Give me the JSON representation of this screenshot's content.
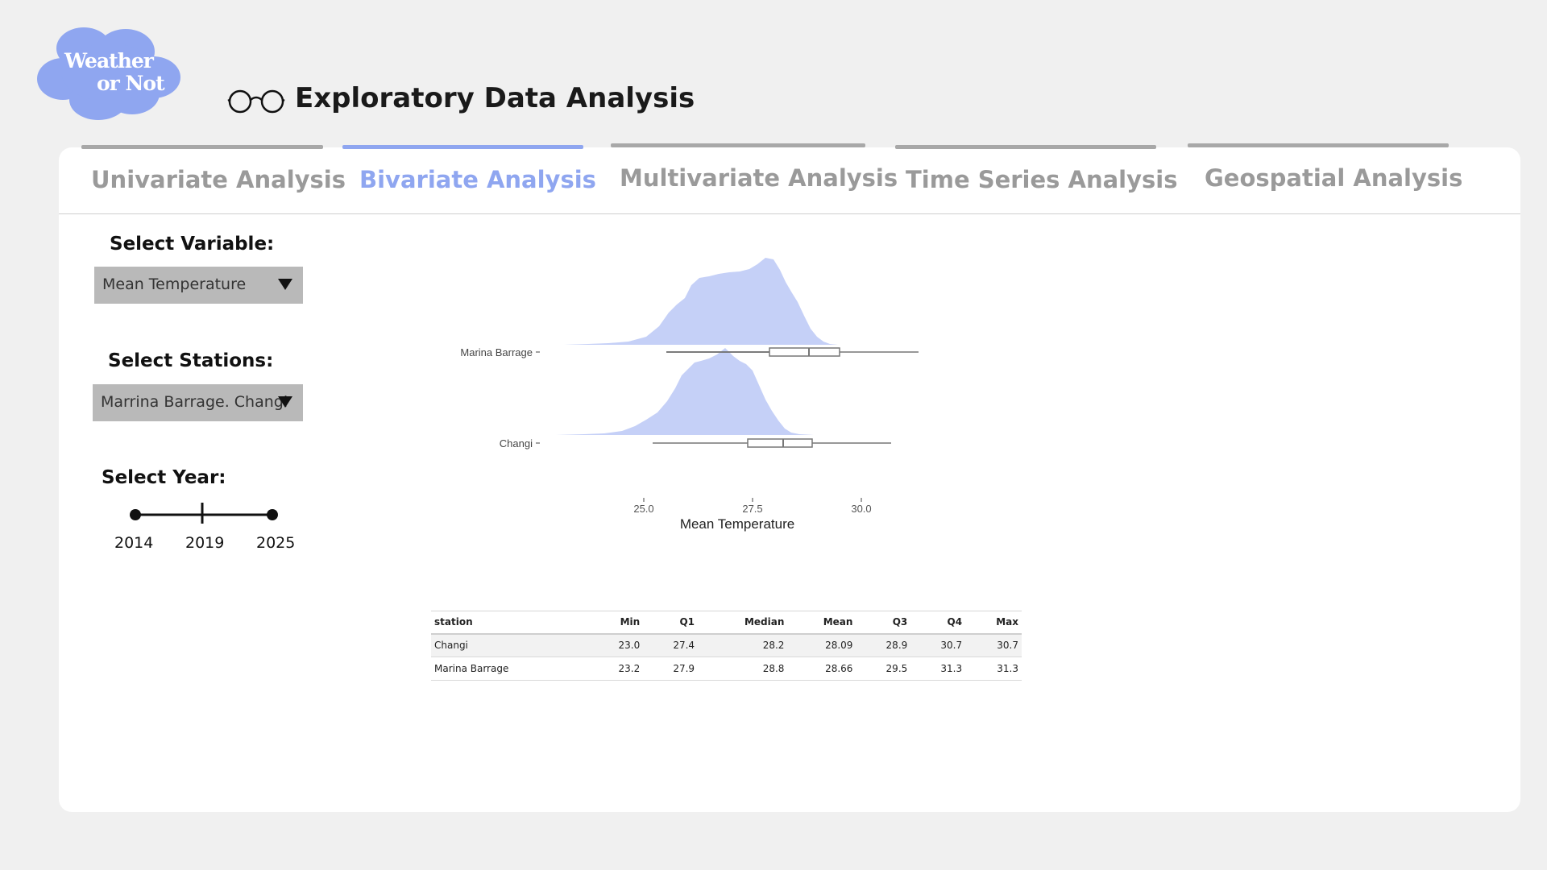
{
  "app": {
    "logo_line1": "Weather",
    "logo_line2": "or Not",
    "logo_color": "#8fa6f0",
    "title": "Exploratory Data Analysis",
    "title_icon": "glasses-icon"
  },
  "tabs": [
    {
      "label": "Univariate Analysis",
      "active": false
    },
    {
      "label": "Bivariate Analysis",
      "active": true
    },
    {
      "label": "Multivariate Analysis",
      "active": false
    },
    {
      "label": "Time Series Analysis",
      "active": false
    },
    {
      "label": "Geospatial Analysis",
      "active": false
    }
  ],
  "controls": {
    "variable_label": "Select Variable:",
    "variable_value": "Mean Temperature",
    "stations_label": "Select Stations:",
    "stations_value": "Marrina Barrage. Changi",
    "year_label": "Select Year:",
    "year_ticks": [
      "2014",
      "2019",
      "2025"
    ],
    "year_range": [
      2014,
      2025
    ]
  },
  "colors": {
    "accent": "#8fa6f0",
    "density_fill": "#c5d0f7",
    "inactive_tab": "#9a9a9a"
  },
  "chart_data": {
    "type": "ridgeline_density_boxplot",
    "xlabel": "Mean Temperature",
    "xticks": [
      "25.0",
      "27.5",
      "30.0"
    ],
    "xlim": [
      23.0,
      31.3
    ],
    "series": [
      {
        "name": "Marina Barrage",
        "min": 23.2,
        "q1": 27.9,
        "median": 28.8,
        "q3": 29.5,
        "max": 31.3
      },
      {
        "name": "Changi",
        "min": 23.0,
        "q1": 27.4,
        "median": 28.2,
        "q3": 28.9,
        "max": 30.7
      }
    ]
  },
  "table": {
    "columns": [
      "station",
      "Min",
      "Q1",
      "Median",
      "Mean",
      "Q3",
      "Q4",
      "Max"
    ],
    "rows": [
      [
        "Changi",
        "23.0",
        "27.4",
        "28.2",
        "28.09",
        "28.9",
        "30.7",
        "30.7"
      ],
      [
        "Marina Barrage",
        "23.2",
        "27.9",
        "28.8",
        "28.66",
        "29.5",
        "31.3",
        "31.3"
      ]
    ]
  }
}
